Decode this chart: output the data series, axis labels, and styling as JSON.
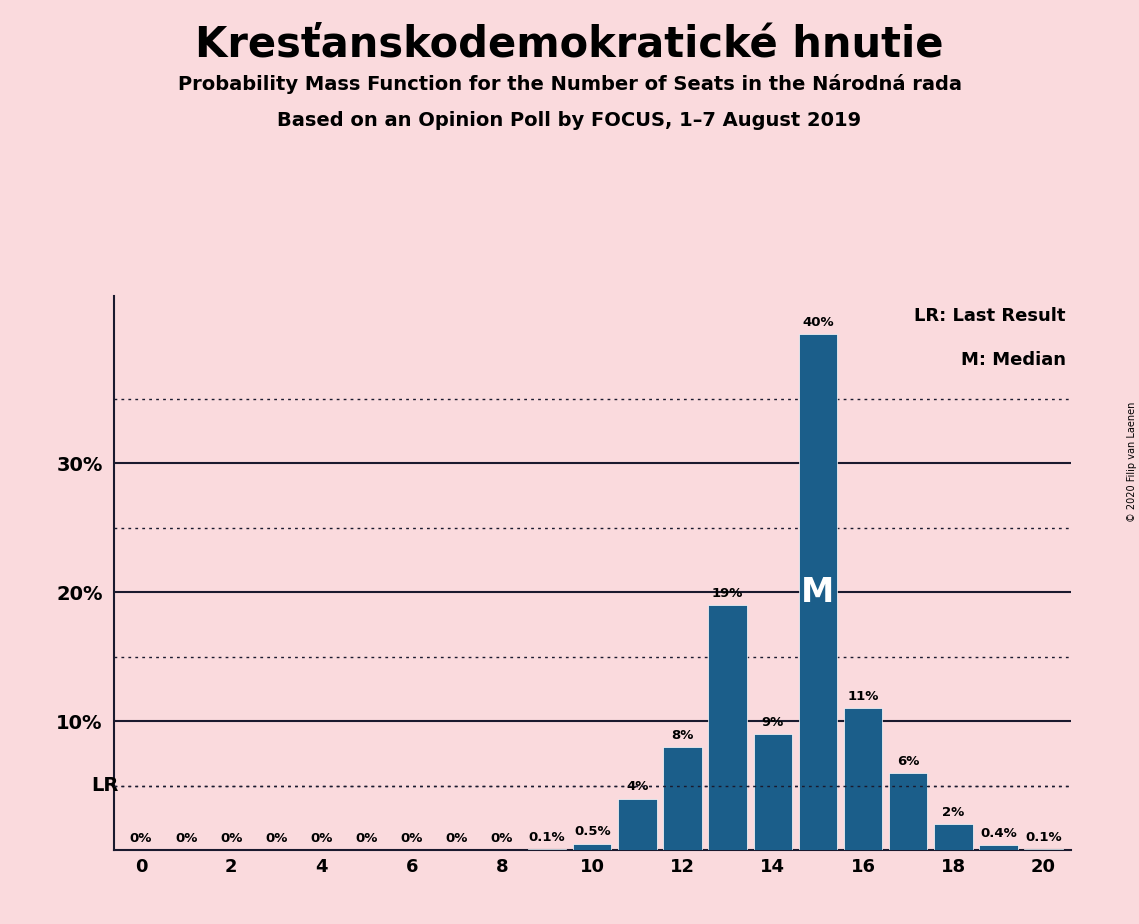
{
  "title": "Kresťanskodemokratické hnutie",
  "subtitle1": "Probability Mass Function for the Number of Seats in the Národná rada",
  "subtitle2": "Based on an Opinion Poll by FOCUS, 1–7 August 2019",
  "copyright": "© 2020 Filip van Laenen",
  "seats": [
    0,
    1,
    2,
    3,
    4,
    5,
    6,
    7,
    8,
    9,
    10,
    11,
    12,
    13,
    14,
    15,
    16,
    17,
    18,
    19,
    20
  ],
  "probabilities": [
    0.0,
    0.0,
    0.0,
    0.0,
    0.0,
    0.0,
    0.0,
    0.0,
    0.0,
    0.1,
    0.5,
    4.0,
    8.0,
    19.0,
    9.0,
    40.0,
    11.0,
    6.0,
    2.0,
    0.4,
    0.1
  ],
  "labels": [
    "0%",
    "0%",
    "0%",
    "0%",
    "0%",
    "0%",
    "0%",
    "0%",
    "0%",
    "0.1%",
    "0.5%",
    "4%",
    "8%",
    "19%",
    "9%",
    "40%",
    "11%",
    "6%",
    "2%",
    "0.4%",
    "0.1%"
  ],
  "bar_color": "#1b5e8a",
  "background_color": "#fadadd",
  "lr_value": 5.0,
  "lr_label": "LR",
  "median_seat": 15,
  "median_label": "M",
  "ylim_max": 43,
  "solid_lines": [
    10.0,
    20.0,
    30.0
  ],
  "dotted_lines": [
    5.0,
    15.0,
    25.0,
    35.0
  ],
  "legend_lr": "LR: Last Result",
  "legend_m": "M: Median",
  "xticks": [
    0,
    2,
    4,
    6,
    8,
    10,
    12,
    14,
    16,
    18,
    20
  ],
  "ytick_labels": [
    "10%",
    "20%",
    "30%"
  ]
}
